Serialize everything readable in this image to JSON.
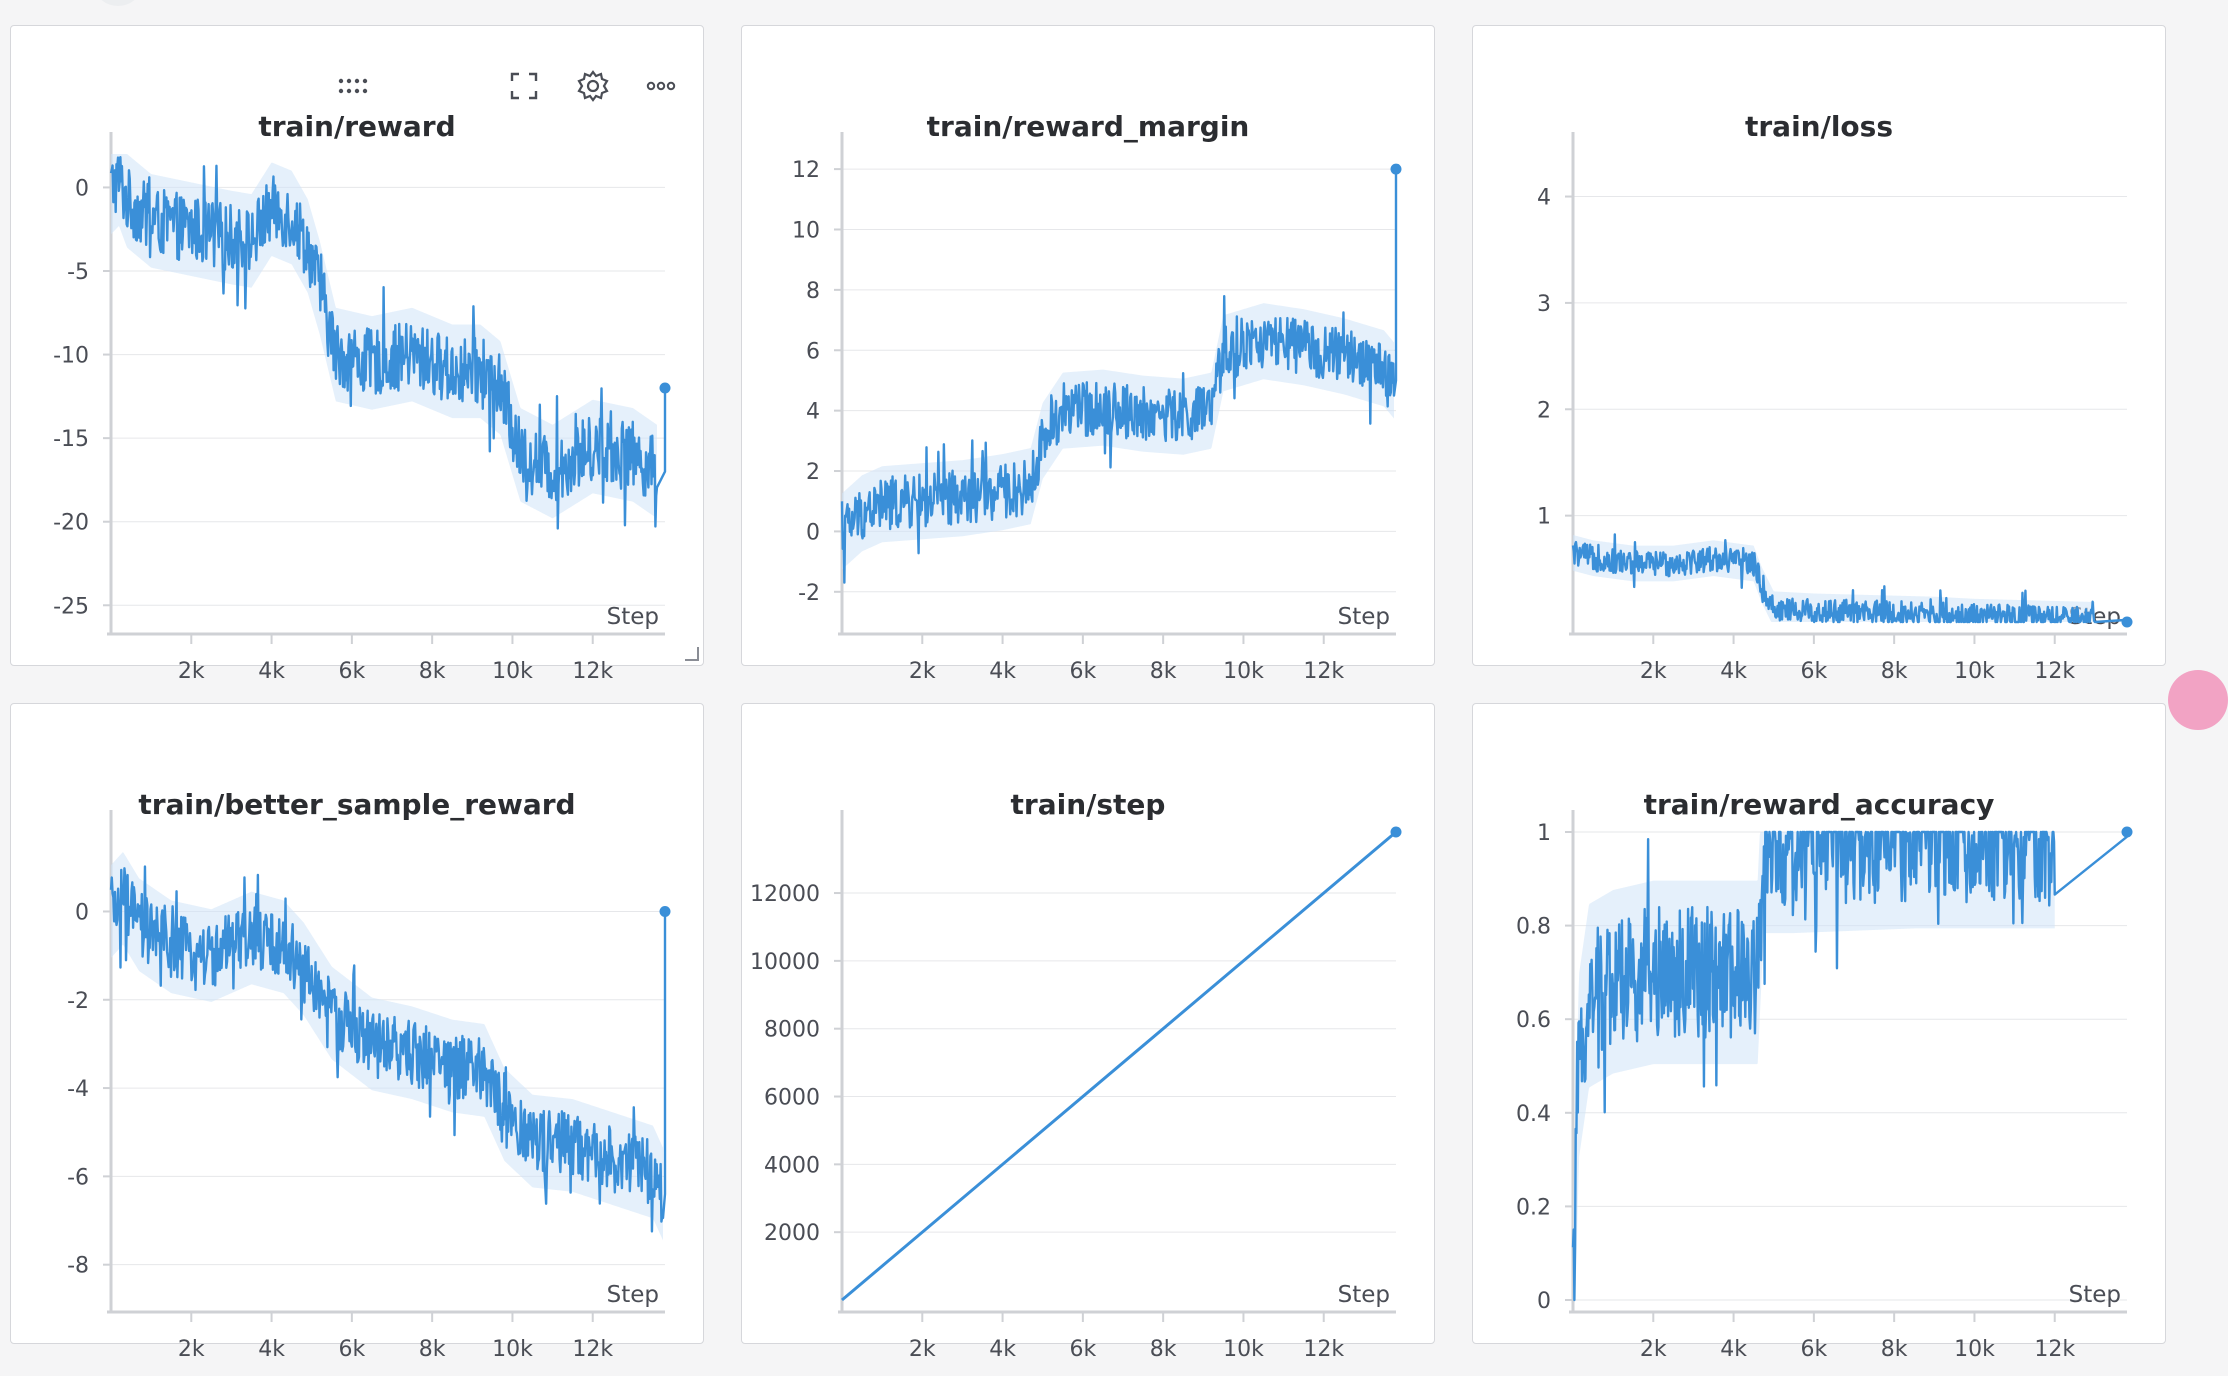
{
  "accent_color": "#3a8fd8",
  "band_color": "#cfe4f7",
  "toolbar": {
    "drag_icon": "drag-handle-icon",
    "fullscreen_icon": "fullscreen-icon",
    "settings_icon": "gear-icon",
    "more_icon": "more-icon"
  },
  "panels": [
    {
      "id": "reward",
      "title": "train/reward",
      "x_axis_label": "Step",
      "chart_data": {
        "type": "line",
        "title": "train/reward",
        "xlabel": "Step",
        "x_ticks": [
          "2k",
          "4k",
          "6k",
          "8k",
          "10k",
          "12k"
        ],
        "y_ticks": [
          "0",
          "-5",
          "-10",
          "-15",
          "-20",
          "-25"
        ],
        "xlim": [
          0,
          13800
        ],
        "ylim": [
          -26,
          2
        ],
        "grid": true,
        "noise": 2.0,
        "series": [
          {
            "x": [
              0,
              200,
              400,
              1000,
              2000,
              3000,
              3500,
              4000,
              4500,
              4900,
              5200,
              5600,
              6500,
              7500,
              8500,
              9200,
              9700,
              10200,
              11000,
              12000,
              13000,
              13600,
              13800
            ],
            "y": [
              0,
              0.5,
              -0.8,
              -2,
              -2.5,
              -3,
              -3.2,
              -1.3,
              -1.8,
              -3.5,
              -6,
              -10,
              -10.5,
              -10,
              -11,
              -11,
              -12,
              -16,
              -17,
              -15.5,
              -16,
              -17,
              -12
            ]
          }
        ]
      }
    },
    {
      "id": "reward_margin",
      "title": "train/reward_margin",
      "x_axis_label": "Step",
      "chart_data": {
        "type": "line",
        "title": "train/reward_margin",
        "xlabel": "Step",
        "x_ticks": [
          "2k",
          "4k",
          "6k",
          "8k",
          "10k",
          "12k"
        ],
        "y_ticks": [
          "12",
          "10",
          "8",
          "6",
          "4",
          "2",
          "0",
          "-2"
        ],
        "xlim": [
          0,
          13800
        ],
        "ylim": [
          -3,
          12.5
        ],
        "grid": true,
        "noise": 0.9,
        "series": [
          {
            "x": [
              0,
              500,
              1000,
              2000,
              3000,
              4000,
              4700,
              5000,
              5500,
              6500,
              7500,
              8500,
              9200,
              9500,
              10500,
              11500,
              12500,
              13500,
              13750,
              13800
            ],
            "y": [
              0,
              0.6,
              0.9,
              1.0,
              1.1,
              1.3,
              1.5,
              3.0,
              4.0,
              4.1,
              3.9,
              3.8,
              4.0,
              5.9,
              6.3,
              6.1,
              5.8,
              5.4,
              5.0,
              12
            ]
          }
        ]
      }
    },
    {
      "id": "loss",
      "title": "train/loss",
      "x_axis_label": "Step",
      "chart_data": {
        "type": "line",
        "title": "train/loss",
        "xlabel": "Step",
        "x_ticks": [
          "2k",
          "4k",
          "6k",
          "8k",
          "10k",
          "12k"
        ],
        "y_ticks": [
          "4",
          "3",
          "2",
          "1"
        ],
        "xlim": [
          0,
          13800
        ],
        "ylim": [
          0,
          4.4
        ],
        "grid": true,
        "noise": 0.12,
        "series": [
          {
            "x": [
              0,
              500,
              1500,
              2500,
              3500,
              4500,
              4700,
              5000,
              6000,
              7000,
              8000,
              9000,
              10000,
              11000,
              12000,
              13000,
              13800
            ],
            "y": [
              0.65,
              0.6,
              0.55,
              0.55,
              0.6,
              0.55,
              0.35,
              0.12,
              0.1,
              0.09,
              0.08,
              0.07,
              0.05,
              0.04,
              0.03,
              0.02,
              0.0
            ]
          }
        ]
      }
    },
    {
      "id": "better_sample_reward",
      "title": "train/better_sample_reward",
      "x_axis_label": "Step",
      "chart_data": {
        "type": "line",
        "title": "train/better_sample_reward",
        "xlabel": "Step",
        "x_ticks": [
          "2k",
          "4k",
          "6k",
          "8k",
          "10k",
          "12k"
        ],
        "y_ticks": [
          "0",
          "-2",
          "-4",
          "-6",
          "-8"
        ],
        "xlim": [
          0,
          13800
        ],
        "ylim": [
          -8.8,
          1.8
        ],
        "grid": true,
        "noise": 0.75,
        "series": [
          {
            "x": [
              0,
              300,
              700,
              1500,
              2500,
              3500,
              4300,
              4800,
              5500,
              6500,
              7500,
              8500,
              9300,
              9800,
              10500,
              11500,
              12500,
              13500,
              13750,
              13800
            ],
            "y": [
              0,
              0.3,
              -0.3,
              -0.8,
              -1.0,
              -0.6,
              -0.8,
              -1.3,
              -2.3,
              -3.0,
              -3.2,
              -3.5,
              -3.6,
              -4.6,
              -5.2,
              -5.3,
              -5.6,
              -5.9,
              -6.4,
              0
            ]
          }
        ]
      }
    },
    {
      "id": "step",
      "title": "train/step",
      "x_axis_label": "Step",
      "chart_data": {
        "type": "line",
        "title": "train/step",
        "xlabel": "Step",
        "x_ticks": [
          "2k",
          "4k",
          "6k",
          "8k",
          "10k",
          "12k"
        ],
        "y_ticks": [
          "12000",
          "10000",
          "8000",
          "6000",
          "4000",
          "2000"
        ],
        "xlim": [
          0,
          13800
        ],
        "ylim": [
          0,
          13800
        ],
        "grid": true,
        "noise": 0,
        "series": [
          {
            "x": [
              0,
              13800
            ],
            "y": [
              0,
              13800
            ]
          }
        ]
      }
    },
    {
      "id": "reward_accuracy",
      "title": "train/reward_accuracy",
      "x_axis_label": "Step",
      "chart_data": {
        "type": "line",
        "title": "train/reward_accuracy",
        "xlabel": "Step",
        "x_ticks": [
          "2k",
          "4k",
          "6k",
          "8k",
          "10k",
          "12k"
        ],
        "y_ticks": [
          "1",
          "0.8",
          "0.6",
          "0.4",
          "0.2",
          "0"
        ],
        "xlim": [
          0,
          13800
        ],
        "ylim": [
          0,
          1
        ],
        "grid": true,
        "noise": 0.14,
        "clamp_max": 1,
        "series": [
          {
            "x": [
              0,
              60,
              150,
              400,
              1000,
              2000,
              3000,
              4000,
              4600,
              4750,
              5500,
              7000,
              8500,
              10000,
              12000,
              13800
            ],
            "y": [
              0,
              0.2,
              0.5,
              0.65,
              0.68,
              0.7,
              0.7,
              0.7,
              0.7,
              0.98,
              0.98,
              0.985,
              0.99,
              0.99,
              0.99,
              1
            ]
          }
        ]
      }
    }
  ]
}
